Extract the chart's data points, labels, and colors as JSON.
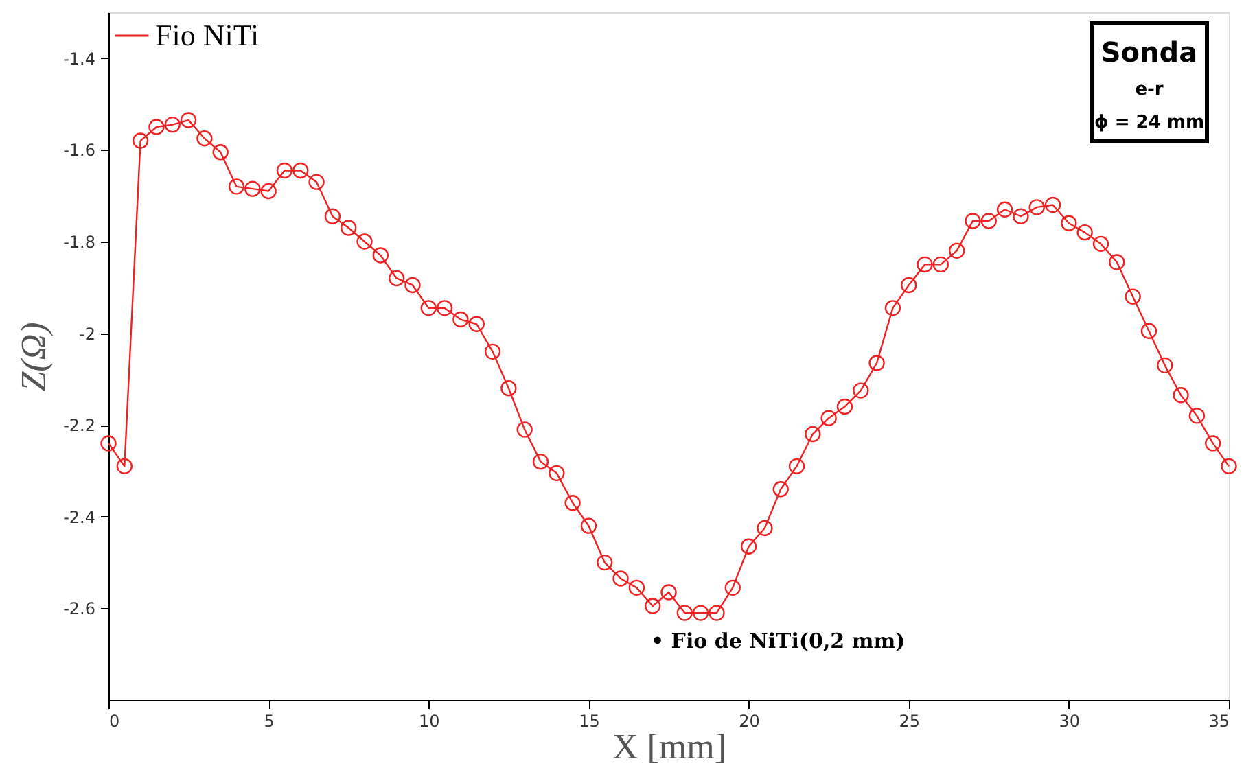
{
  "chart_data": {
    "type": "line",
    "xlabel": "X [mm]",
    "ylabel": "Z(Ω)",
    "x": [
      0,
      0.5,
      1,
      1.5,
      2,
      2.5,
      3,
      3.5,
      4,
      4.5,
      5,
      5.5,
      6,
      6.5,
      7,
      7.5,
      8,
      8.5,
      9,
      9.5,
      10,
      10.5,
      11,
      11.5,
      12,
      12.5,
      13,
      13.5,
      14,
      14.5,
      15,
      15.5,
      16,
      16.5,
      17,
      17.5,
      18,
      18.5,
      19,
      19.5,
      20,
      20.5,
      21,
      21.5,
      22,
      22.5,
      23,
      23.5,
      24,
      24.5,
      25,
      25.5,
      26,
      26.5,
      27,
      27.5,
      28,
      28.5,
      29,
      29.5,
      30,
      30.5,
      31,
      31.5,
      32,
      32.5,
      33,
      33.5,
      34,
      34.5,
      35
    ],
    "series": [
      {
        "name": "Fio NiTi",
        "color": "#ee2222",
        "values": [
          -2.24,
          -2.29,
          -1.58,
          -1.55,
          -1.545,
          -1.535,
          -1.575,
          -1.605,
          -1.68,
          -1.685,
          -1.69,
          -1.645,
          -1.645,
          -1.67,
          -1.745,
          -1.77,
          -1.8,
          -1.83,
          -1.88,
          -1.895,
          -1.945,
          -1.945,
          -1.97,
          -1.98,
          -2.04,
          -2.12,
          -2.21,
          -2.28,
          -2.305,
          -2.37,
          -2.42,
          -2.5,
          -2.535,
          -2.555,
          -2.595,
          -2.565,
          -2.61,
          -2.61,
          -2.61,
          -2.555,
          -2.465,
          -2.425,
          -2.34,
          -2.29,
          -2.22,
          -2.185,
          -2.16,
          -2.125,
          -2.065,
          -1.945,
          -1.895,
          -1.85,
          -1.85,
          -1.82,
          -1.755,
          -1.755,
          -1.73,
          -1.745,
          -1.725,
          -1.72,
          -1.76,
          -1.78,
          -1.805,
          -1.845,
          -1.92,
          -1.995,
          -2.07,
          -2.135,
          -2.18,
          -2.24,
          -2.29
        ]
      }
    ],
    "xlim": [
      0,
      35
    ],
    "xticks": [
      0,
      5,
      10,
      15,
      20,
      25,
      30,
      35
    ],
    "ylim": [
      -2.8,
      -1.3
    ],
    "yticks": [
      -1.4,
      -1.6,
      -1.8,
      -2,
      -2.2,
      -2.4,
      -2.6
    ],
    "legend": "top left",
    "marker": "circle",
    "line_style": "solid",
    "annotations": [
      "• Fio de NiTi(0,2 mm)",
      "Sonda",
      "e-r",
      "ϕ = 24 mm"
    ]
  }
}
